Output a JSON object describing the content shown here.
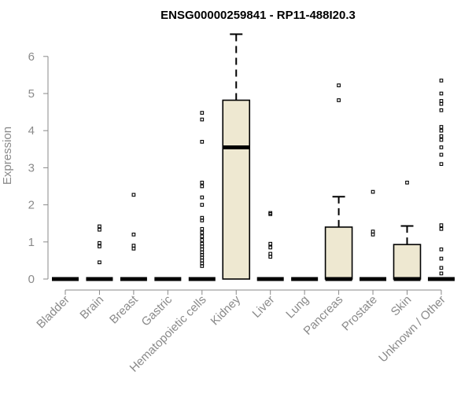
{
  "chart_data": {
    "type": "box",
    "title": "ENSG00000259841 - RP11-488I20.3",
    "xlabel": "",
    "ylabel": "Expression",
    "ylim": [
      0,
      6.5
    ],
    "yticks": [
      0,
      1,
      2,
      3,
      4,
      5,
      6
    ],
    "colors": {
      "box_fill": "#EEE8D1",
      "line": "#000000",
      "axis": "#8a8a8a"
    },
    "categories": [
      "Bladder",
      "Brain",
      "Breast",
      "Gastric",
      "Hematopoietic cells",
      "Kidney",
      "Liver",
      "Lung",
      "Pancreas",
      "Prostate",
      "Skin",
      "Unknown / Other"
    ],
    "boxes": [
      {
        "category": "Bladder",
        "q1": 0,
        "median": 0,
        "q3": 0,
        "whisker_low": 0,
        "whisker_high": 0,
        "outliers": []
      },
      {
        "category": "Brain",
        "q1": 0,
        "median": 0,
        "q3": 0,
        "whisker_low": 0,
        "whisker_high": 0,
        "outliers": [
          0.45,
          0.88,
          0.97,
          1.33,
          1.42
        ]
      },
      {
        "category": "Breast",
        "q1": 0,
        "median": 0,
        "q3": 0,
        "whisker_low": 0,
        "whisker_high": 0,
        "outliers": [
          0.82,
          0.9,
          1.2,
          2.27
        ]
      },
      {
        "category": "Gastric",
        "q1": 0,
        "median": 0,
        "q3": 0,
        "whisker_low": 0,
        "whisker_high": 0,
        "outliers": []
      },
      {
        "category": "Hematopoietic cells",
        "q1": 0,
        "median": 0,
        "q3": 0,
        "whisker_low": 0,
        "whisker_high": 0,
        "outliers": [
          0.35,
          0.42,
          0.5,
          0.58,
          0.65,
          0.72,
          0.8,
          0.88,
          0.95,
          1.05,
          1.15,
          1.25,
          1.35,
          1.58,
          1.65,
          2.0,
          2.2,
          2.5,
          2.6,
          3.7,
          4.3,
          4.48
        ]
      },
      {
        "category": "Kidney",
        "q1": 0,
        "median": 3.55,
        "q3": 4.82,
        "whisker_low": 0,
        "whisker_high": 6.6,
        "outliers": []
      },
      {
        "category": "Liver",
        "q1": 0,
        "median": 0,
        "q3": 0,
        "whisker_low": 0,
        "whisker_high": 0,
        "outliers": [
          0.6,
          0.68,
          0.85,
          0.95,
          1.75,
          1.78
        ]
      },
      {
        "category": "Lung",
        "q1": 0,
        "median": 0,
        "q3": 0,
        "whisker_low": 0,
        "whisker_high": 0,
        "outliers": []
      },
      {
        "category": "Pancreas",
        "q1": 0,
        "median": 0,
        "q3": 1.4,
        "whisker_low": 0,
        "whisker_high": 2.22,
        "outliers": [
          4.82,
          5.22
        ]
      },
      {
        "category": "Prostate",
        "q1": 0,
        "median": 0,
        "q3": 0,
        "whisker_low": 0,
        "whisker_high": 0,
        "outliers": [
          1.2,
          1.28,
          2.35
        ]
      },
      {
        "category": "Skin",
        "q1": 0,
        "median": 0,
        "q3": 0.93,
        "whisker_low": 0,
        "whisker_high": 1.43,
        "outliers": [
          2.6
        ]
      },
      {
        "category": "Unknown / Other",
        "q1": 0,
        "median": 0,
        "q3": 0,
        "whisker_low": 0,
        "whisker_high": 0,
        "outliers": [
          0.15,
          0.3,
          0.55,
          0.8,
          1.35,
          1.45,
          3.1,
          3.35,
          3.55,
          3.75,
          3.85,
          4.0,
          4.1,
          4.55,
          4.72,
          4.8,
          5.0,
          5.35
        ]
      }
    ]
  }
}
